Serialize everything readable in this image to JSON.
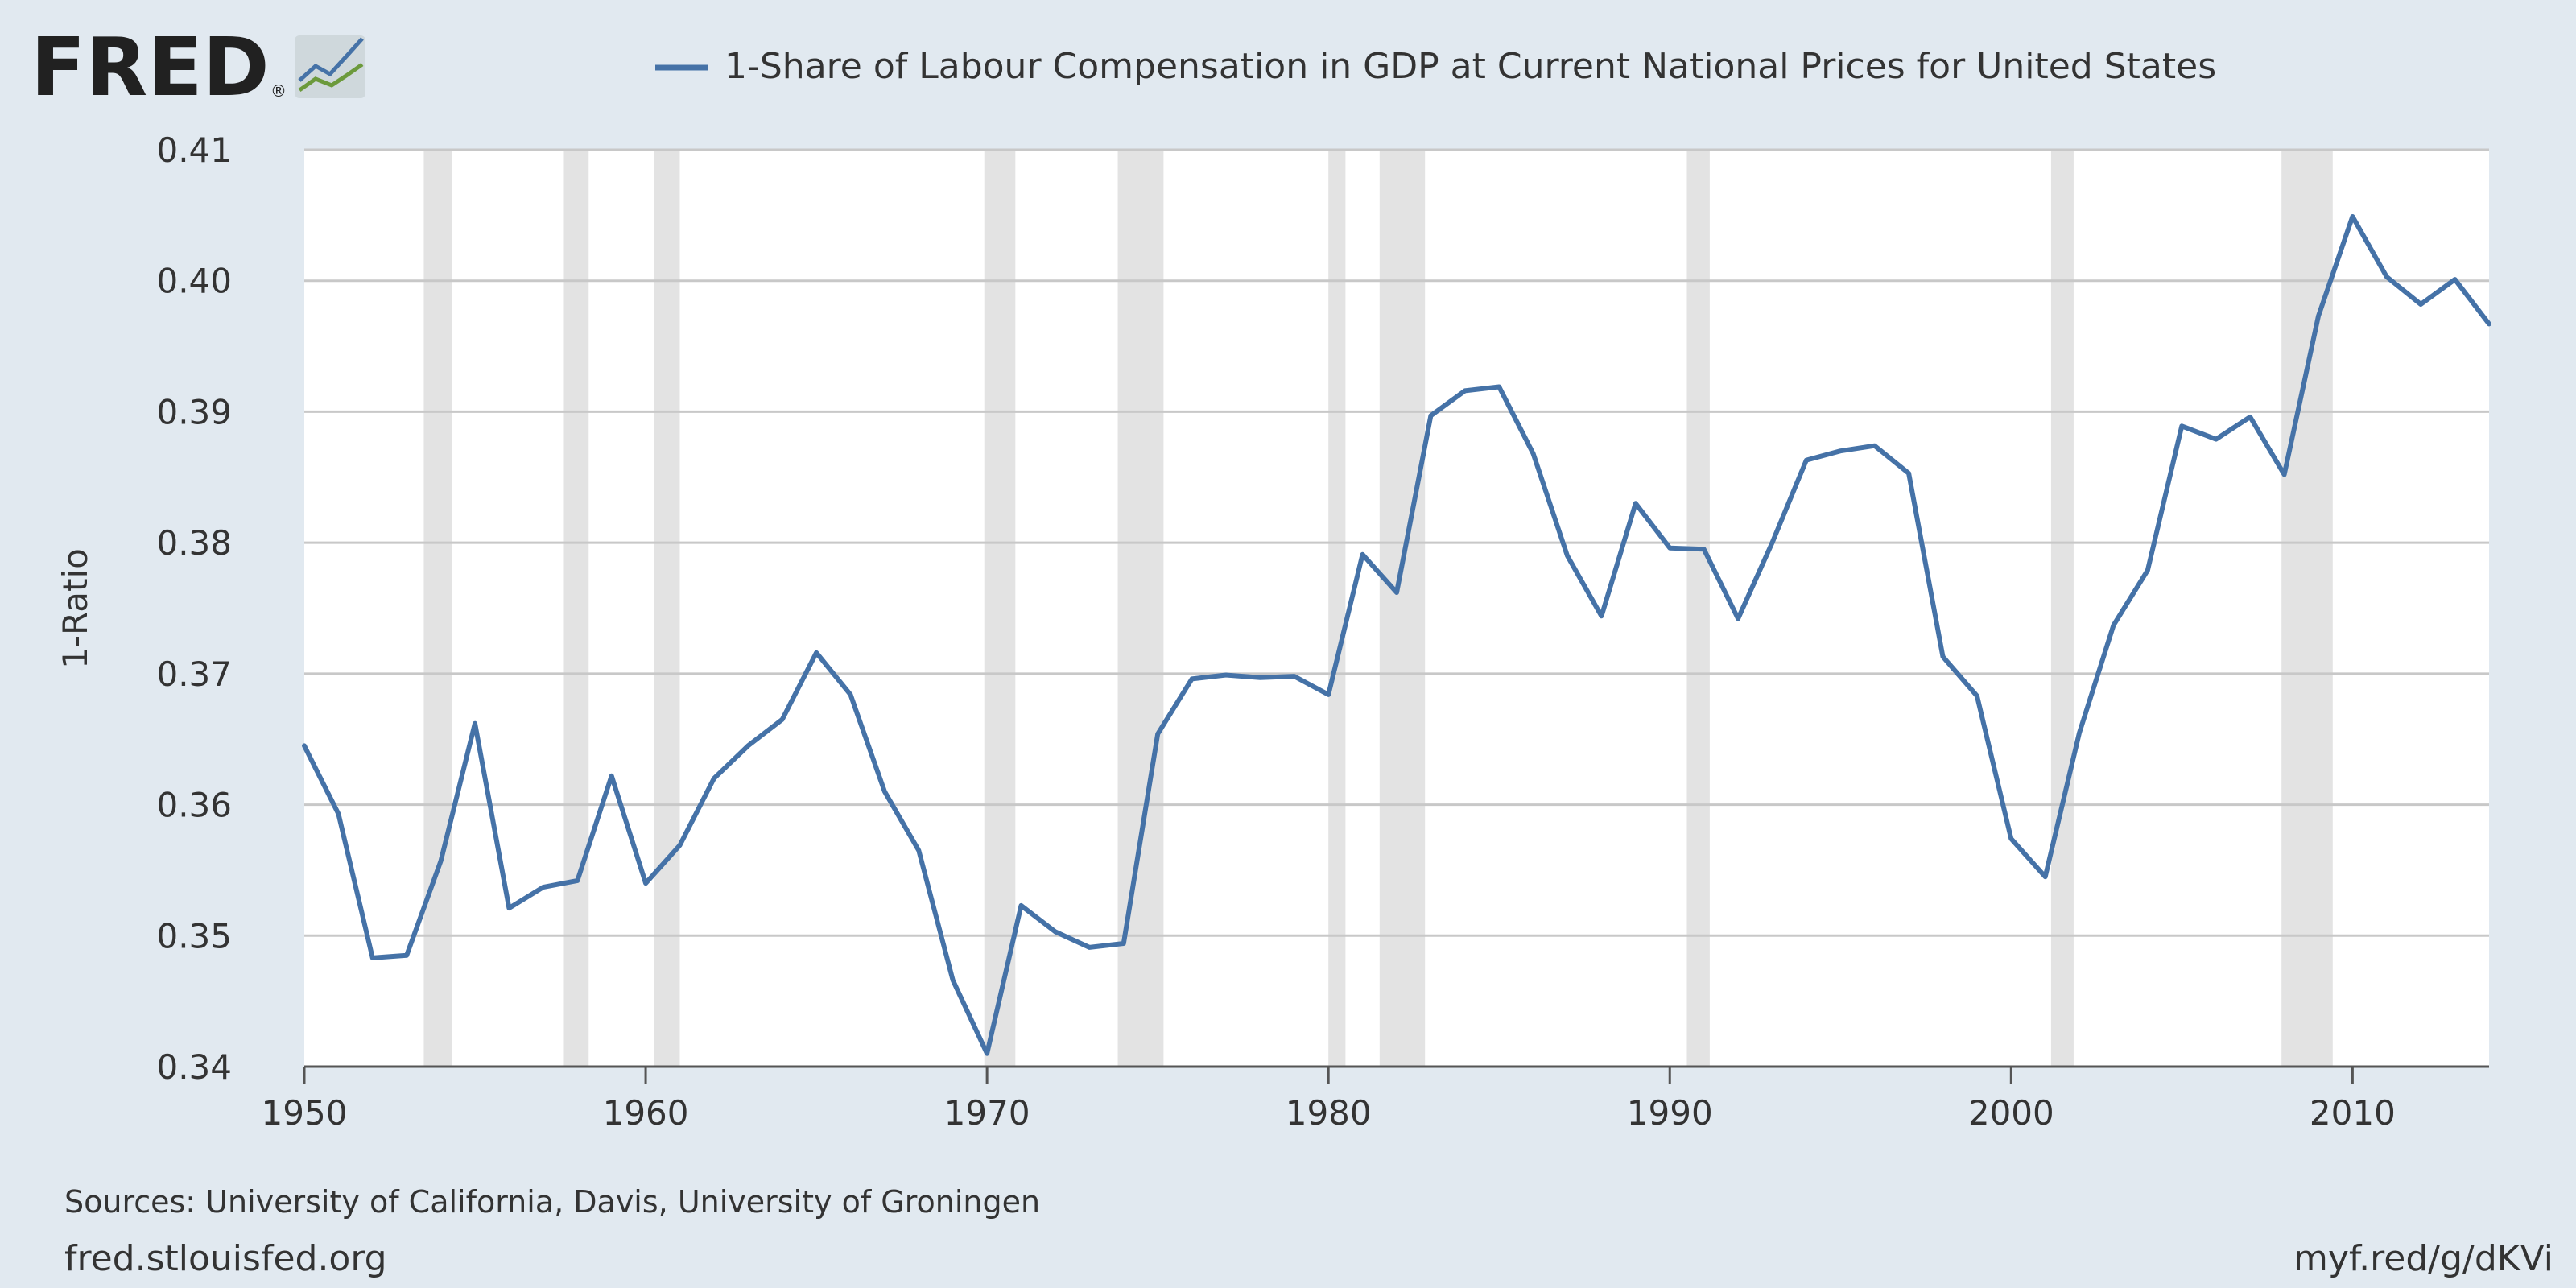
{
  "header": {
    "logo_text": "FRED",
    "logo_mark": "®",
    "legend_label": "1-Share of Labour Compensation in GDP at Current National Prices for United States"
  },
  "footer": {
    "sources": "Sources: University of California, Davis, University of Groningen",
    "site": "fred.stlouisfed.org",
    "short_link": "myf.red/g/dKVi"
  },
  "colors": {
    "background": "#e1e9f0",
    "plot_background": "#ffffff",
    "line": "#4572a7",
    "recession": "#e3e3e3",
    "grid": "#c8c8c8"
  },
  "chart_data": {
    "type": "line",
    "title": "",
    "xlabel": "",
    "ylabel": "1-Ratio",
    "xlim": [
      1950,
      2014
    ],
    "ylim": [
      0.34,
      0.41
    ],
    "x_ticks": [
      1950,
      1960,
      1970,
      1980,
      1990,
      2000,
      2010
    ],
    "x_tick_labels": [
      "1950",
      "1960",
      "1970",
      "1980",
      "1990",
      "2000",
      "2010"
    ],
    "y_ticks": [
      0.34,
      0.35,
      0.36,
      0.37,
      0.38,
      0.39,
      0.4,
      0.41
    ],
    "y_tick_labels": [
      "0.34",
      "0.35",
      "0.36",
      "0.37",
      "0.38",
      "0.39",
      "0.40",
      "0.41"
    ],
    "grid": true,
    "legend": "top",
    "recessions": [
      [
        1953.5,
        1954.33
      ],
      [
        1957.58,
        1958.33
      ],
      [
        1960.25,
        1961.0
      ],
      [
        1969.92,
        1970.83
      ],
      [
        1973.83,
        1975.17
      ],
      [
        1980.0,
        1980.5
      ],
      [
        1981.5,
        1982.83
      ],
      [
        1990.5,
        1991.17
      ],
      [
        2001.17,
        2001.83
      ],
      [
        2007.92,
        2009.42
      ]
    ],
    "series": [
      {
        "name": "1-Share of Labour Compensation in GDP at Current National Prices for United States",
        "x": [
          1950,
          1951,
          1952,
          1953,
          1954,
          1955,
          1956,
          1957,
          1958,
          1959,
          1960,
          1961,
          1962,
          1963,
          1964,
          1965,
          1966,
          1967,
          1968,
          1969,
          1970,
          1971,
          1972,
          1973,
          1974,
          1975,
          1976,
          1977,
          1978,
          1979,
          1980,
          1981,
          1982,
          1983,
          1984,
          1985,
          1986,
          1987,
          1988,
          1989,
          1990,
          1991,
          1992,
          1993,
          1994,
          1995,
          1996,
          1997,
          1998,
          1999,
          2000,
          2001,
          2002,
          2003,
          2004,
          2005,
          2006,
          2007,
          2008,
          2009,
          2010,
          2011,
          2012,
          2013,
          2014
        ],
        "values": [
          0.3645,
          0.3593,
          0.3483,
          0.3485,
          0.3557,
          0.3662,
          0.3521,
          0.3537,
          0.3542,
          0.3622,
          0.354,
          0.3569,
          0.362,
          0.3645,
          0.3665,
          0.3716,
          0.3684,
          0.361,
          0.3565,
          0.3466,
          0.341,
          0.3523,
          0.3503,
          0.3491,
          0.3494,
          0.3654,
          0.3696,
          0.3699,
          0.3697,
          0.3698,
          0.3684,
          0.3791,
          0.3762,
          0.3897,
          0.3916,
          0.3919,
          0.3868,
          0.379,
          0.3744,
          0.383,
          0.3796,
          0.3795,
          0.3742,
          0.38,
          0.3863,
          0.387,
          0.3874,
          0.3853,
          0.3713,
          0.3683,
          0.3574,
          0.3545,
          0.3655,
          0.3737,
          0.3779,
          0.3889,
          0.3879,
          0.3896,
          0.3852,
          0.3973,
          0.4049,
          0.4003,
          0.3982,
          0.4001,
          0.3967
        ]
      }
    ]
  }
}
